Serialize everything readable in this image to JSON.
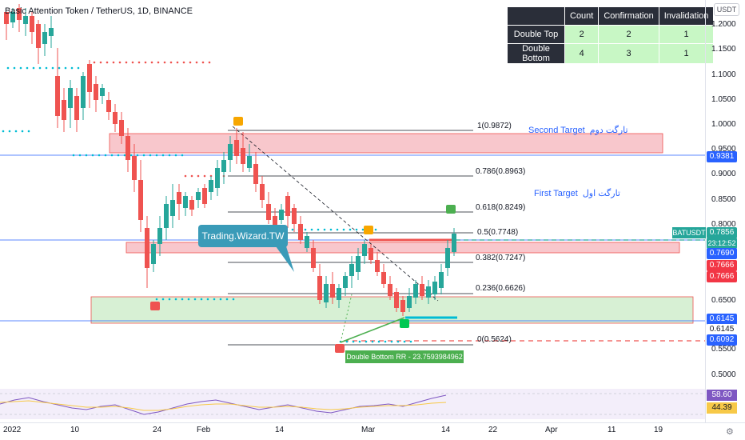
{
  "header": {
    "title": "Basic Attention Token / TetherUS, 1D, BINANCE",
    "currency_button": "USDT"
  },
  "pattern_table": {
    "columns": [
      "",
      "Count",
      "Confirmation",
      "Invalidation"
    ],
    "rows": [
      {
        "label": "Double Top",
        "count": "2",
        "confirmation": "2",
        "invalidation": "1"
      },
      {
        "label": "Double Bottom",
        "count": "4",
        "confirmation": "3",
        "invalidation": "1"
      }
    ]
  },
  "price_axis": {
    "ticks": [
      "1.2000",
      "1.1500",
      "1.1000",
      "1.0500",
      "1.0000",
      "0.9500",
      "0.9000",
      "0.8500",
      "0.8000",
      "0.7500",
      "0.7000",
      "0.6500",
      "0.6000",
      "0.5500",
      "0.5000"
    ],
    "tags": [
      {
        "text": "0.9381",
        "color": "#2962ff"
      },
      {
        "text": "0.7856",
        "color": "#26a69a"
      },
      {
        "text": "23:12:52",
        "color": "#26a69a"
      },
      {
        "text": "0.7690",
        "color": "#2962ff"
      },
      {
        "text": "0.7666",
        "color": "#f23645"
      },
      {
        "text": "0.7666",
        "color": "#f23645"
      },
      {
        "text": "0.6145",
        "color": "#2962ff"
      },
      {
        "text": "0.6145",
        "color": "#ffffff"
      },
      {
        "text": "0.6092",
        "color": "#2962ff"
      }
    ],
    "symbol_tag": "BATUSDT"
  },
  "time_axis": {
    "labels": [
      "2022",
      "10",
      "24",
      "Feb",
      "14",
      "Mar",
      "14",
      "22",
      "Apr",
      "11",
      "19"
    ]
  },
  "fibonacci": [
    {
      "label": "1(0.9872)"
    },
    {
      "label": "0.786(0.8963)"
    },
    {
      "label": "0.618(0.8249)"
    },
    {
      "label": "0.5(0.7748)"
    },
    {
      "label": "0.382(0.7247)"
    },
    {
      "label": "0.236(0.6626)"
    },
    {
      "label": "0(0.5624)"
    }
  ],
  "targets": {
    "second": {
      "en": "Second  Target",
      "fa": "تارگت دوم"
    },
    "first": {
      "en": "First Target",
      "fa": "تارگت اول"
    }
  },
  "annotations": {
    "brand": "Trading.Wizard.TW",
    "rr": "Double Bottom RR - 23.7593984962"
  },
  "oscillator": {
    "value_1": "58.60",
    "value_2": "44.39",
    "color_1": "#7e57c2",
    "color_2": "#f7c948"
  },
  "colors": {
    "up": "#26a69a",
    "down": "#ef5350",
    "resistance_zone": "#f8c7cc",
    "support_zone": "#d7f0d4"
  }
}
